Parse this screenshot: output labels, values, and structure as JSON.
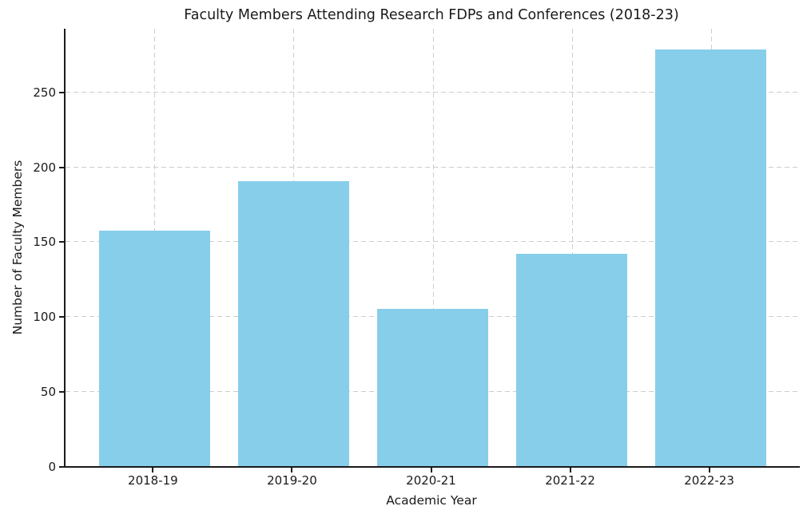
{
  "chart_data": {
    "type": "bar",
    "title": "Faculty Members Attending Research FDPs and Conferences (2018-23)",
    "xlabel": "Academic Year",
    "ylabel": "Number of Faculty Members",
    "categories": [
      "2018-19",
      "2019-20",
      "2020-21",
      "2021-22",
      "2022-23"
    ],
    "values": [
      157,
      190,
      105,
      142,
      278
    ],
    "yticks": [
      0,
      50,
      100,
      150,
      200,
      250
    ],
    "ylim": [
      0,
      292
    ],
    "bar_color": "#87CEEB",
    "grid": "dashed",
    "grid_color": "#cdcdcd",
    "spine_color": "#1a1a1a",
    "legend": "none"
  }
}
